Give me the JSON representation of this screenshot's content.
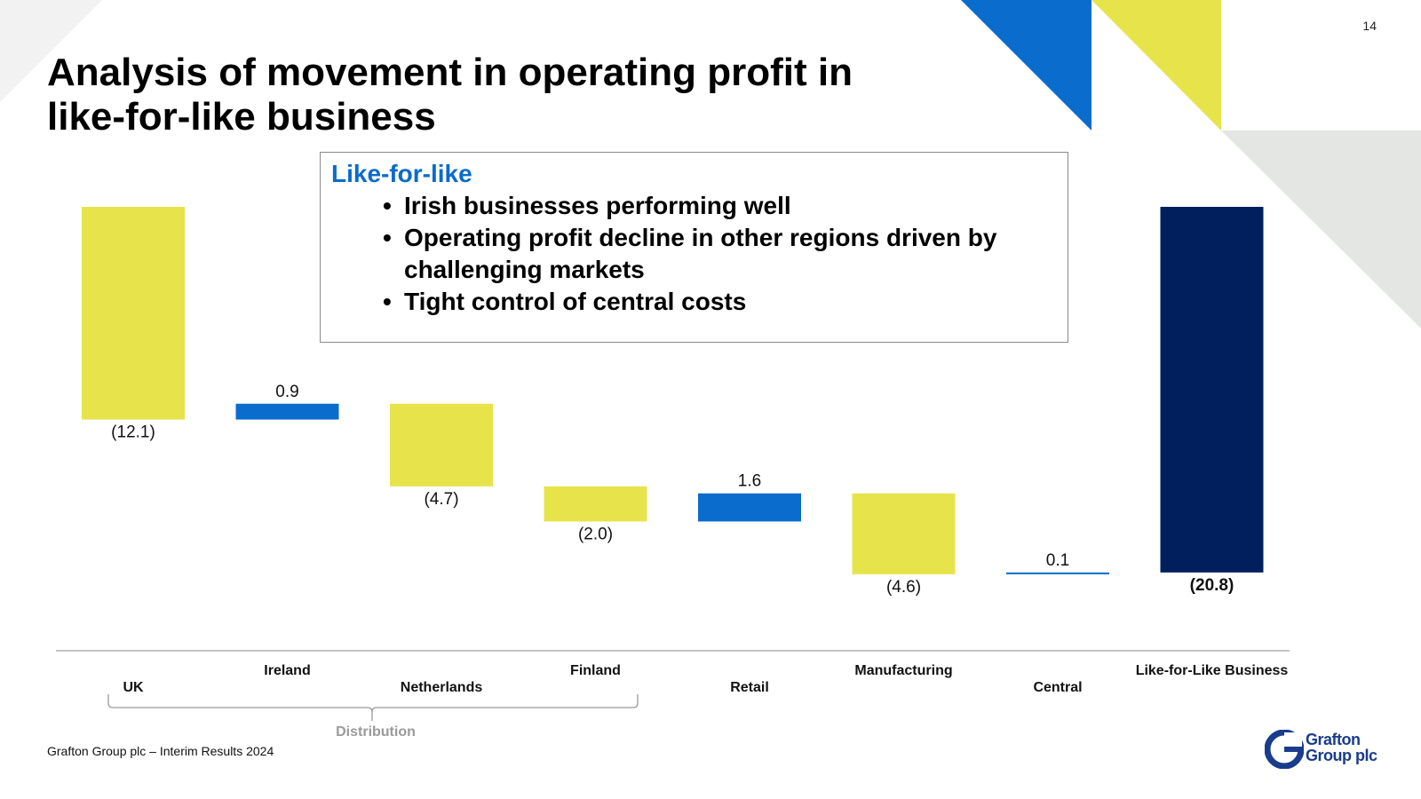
{
  "page_number": "14",
  "title": "Analysis of movement in operating profit in like-for-like business",
  "callout": {
    "heading": "Like-for-like",
    "bullets": [
      "Irish businesses performing well",
      "Operating profit decline in other regions driven by challenging markets",
      "Tight control of central costs"
    ]
  },
  "colors": {
    "decrease": "#e6e44a",
    "increase": "#0a6ccc",
    "total": "#001f5c",
    "brand_blue": "#0a6ccc",
    "brand_yellow": "#e6e44a",
    "grey": "#e3e6e3"
  },
  "chart_data": {
    "type": "bar",
    "subtype": "waterfall",
    "categories": [
      "UK",
      "Ireland",
      "Netherlands",
      "Finland",
      "Retail",
      "Manufacturing",
      "Central",
      "Like-for-Like Business"
    ],
    "values": [
      -12.1,
      0.9,
      -4.7,
      -2.0,
      1.6,
      -4.6,
      0.1,
      -20.8
    ],
    "data_labels": [
      "(12.1)",
      "0.9",
      "(4.7)",
      "(2.0)",
      "1.6",
      "(4.6)",
      "0.1",
      "(20.8)"
    ],
    "kinds": [
      "decrease",
      "increase",
      "decrease",
      "decrease",
      "increase",
      "decrease",
      "increase",
      "total"
    ],
    "group": {
      "label": "Distribution",
      "categories": [
        "UK",
        "Ireland",
        "Netherlands",
        "Finland"
      ]
    },
    "title": "",
    "xlabel": "",
    "ylabel": ""
  },
  "footer": "Grafton Group plc – Interim Results 2024",
  "logo": {
    "line1": "Grafton",
    "line2": "Group plc"
  }
}
